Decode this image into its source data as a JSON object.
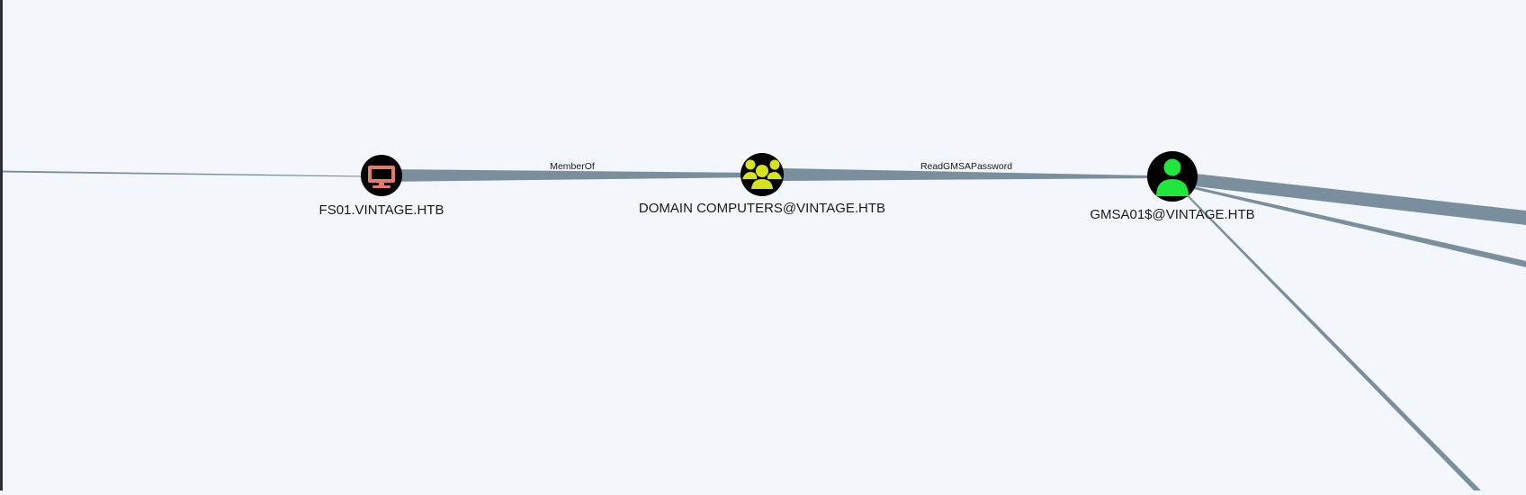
{
  "graph": {
    "background": "#f3f6fa",
    "edge_color": "#7a8f9e",
    "nodes": [
      {
        "id": "fs01",
        "label": "FS01.VINTAGE.HTB",
        "type": "computer",
        "icon": "monitor-icon",
        "icon_color": "#e27a6e",
        "ring_color": "#000000"
      },
      {
        "id": "domain-computers",
        "label": "DOMAIN COMPUTERS@VINTAGE.HTB",
        "type": "group",
        "icon": "users-group-icon",
        "icon_color": "#d7e31a",
        "ring_color": "#000000"
      },
      {
        "id": "gmsa01",
        "label": "GMSA01$@VINTAGE.HTB",
        "type": "user",
        "icon": "user-icon",
        "icon_color": "#21e63b",
        "ring_color": "#000000"
      }
    ],
    "edges": [
      {
        "from": "fs01",
        "to": "domain-computers",
        "label": "MemberOf"
      },
      {
        "from": "domain-computers",
        "to": "gmsa01",
        "label": "ReadGMSAPassword"
      }
    ]
  }
}
